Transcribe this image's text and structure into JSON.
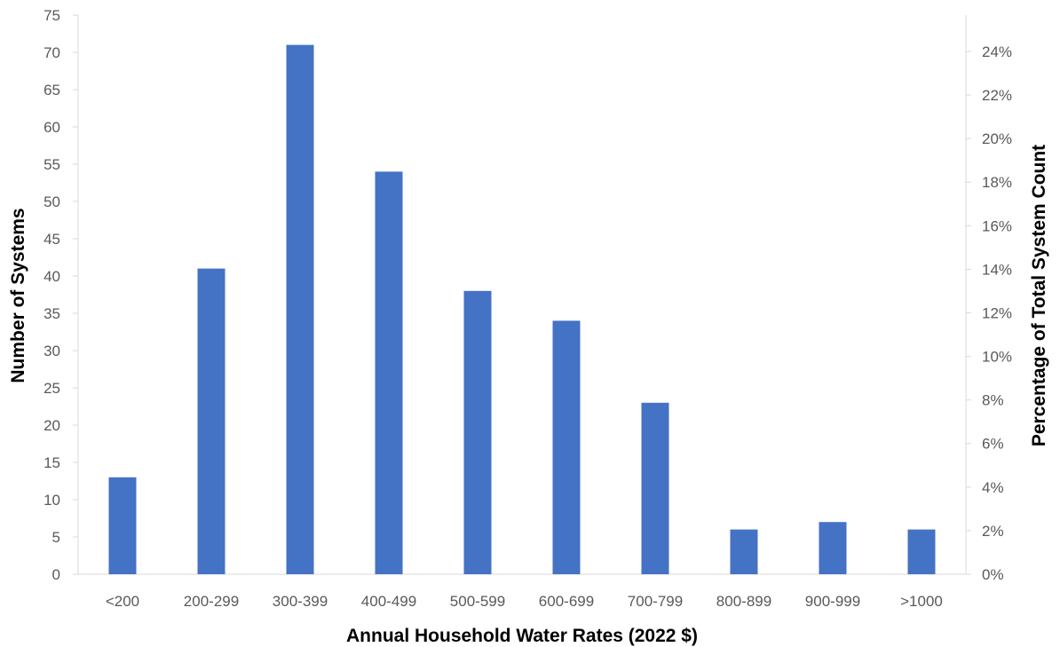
{
  "chart_data": {
    "type": "bar",
    "categories": [
      "<200",
      "200-299",
      "300-399",
      "400-499",
      "500-599",
      "600-699",
      "700-799",
      "800-899",
      "900-999",
      ">1000"
    ],
    "values": [
      13,
      41,
      71,
      54,
      38,
      34,
      23,
      6,
      7,
      6
    ],
    "xlabel": "Annual Household Water Rates (2022 $)",
    "ylabel": "Number of Systems",
    "y2label": "Percentage of Total System Count",
    "ylim": [
      0,
      75
    ],
    "yticks": [
      "0",
      "5",
      "10",
      "15",
      "20",
      "25",
      "30",
      "35",
      "40",
      "45",
      "50",
      "55",
      "60",
      "65",
      "70",
      "75"
    ],
    "y2lim": [
      0,
      0.2567
    ],
    "y2ticks": [
      "0%",
      "2%",
      "4%",
      "6%",
      "8%",
      "10%",
      "12%",
      "14%",
      "16%",
      "18%",
      "20%",
      "22%",
      "24%"
    ],
    "grid": false,
    "bar_color": "#4472C4",
    "axis_color": "#D9D9D9"
  }
}
